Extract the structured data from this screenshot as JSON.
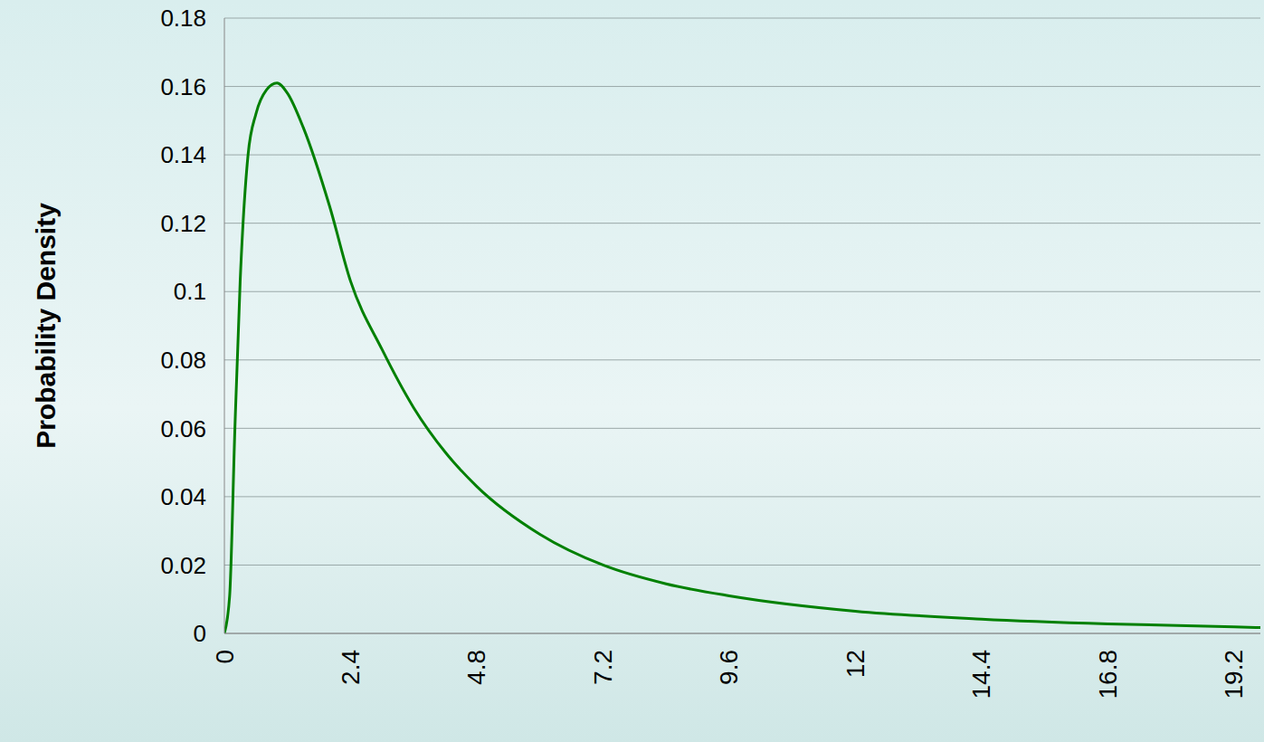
{
  "chart_data": {
    "type": "line",
    "y_label": "Probability Density",
    "x": [
      0,
      0.1,
      0.2,
      0.3,
      0.45,
      0.6,
      0.8,
      1.0,
      1.2,
      1.5,
      2.0,
      2.4,
      3.0,
      3.6,
      4.2,
      4.8,
      6.0,
      7.2,
      8.4,
      9.6,
      12,
      14.4,
      16.8,
      19.2,
      19.7
    ],
    "values": [
      0,
      0.011,
      0.06,
      0.103,
      0.14,
      0.152,
      0.159,
      0.161,
      0.158,
      0.148,
      0.125,
      0.103,
      0.083,
      0.066,
      0.053,
      0.043,
      0.029,
      0.02,
      0.0145,
      0.011,
      0.0065,
      0.0042,
      0.0028,
      0.0019,
      0.0017
    ],
    "color": "#008000",
    "xlim": [
      0,
      19.7
    ],
    "xticks": [
      0,
      2.4,
      4.8,
      7.2,
      9.6,
      12,
      14.4,
      16.8,
      19.2
    ],
    "ylim": [
      0,
      0.18
    ],
    "yticks": [
      0,
      0.02,
      0.04,
      0.06,
      0.08,
      0.1,
      0.12,
      0.14,
      0.16,
      0.18
    ],
    "grid": true
  }
}
